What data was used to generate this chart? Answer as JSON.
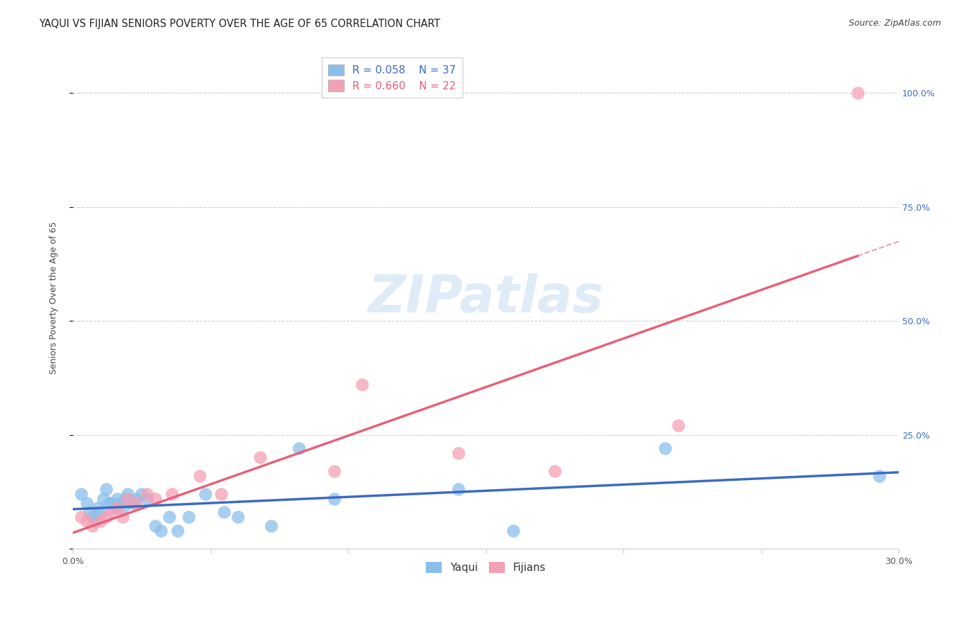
{
  "title": "YAQUI VS FIJIAN SENIORS POVERTY OVER THE AGE OF 65 CORRELATION CHART",
  "source": "Source: ZipAtlas.com",
  "ylabel": "Seniors Poverty Over the Age of 65",
  "xlim": [
    0.0,
    0.3
  ],
  "ylim": [
    0.0,
    1.1
  ],
  "xtick_positions": [
    0.0,
    0.05,
    0.1,
    0.15,
    0.2,
    0.25,
    0.3
  ],
  "xtick_labels": [
    "0.0%",
    "",
    "",
    "",
    "",
    "",
    "30.0%"
  ],
  "ytick_positions": [
    0.0,
    0.25,
    0.5,
    0.75,
    1.0
  ],
  "ytick_labels_right": [
    "",
    "25.0%",
    "50.0%",
    "75.0%",
    "100.0%"
  ],
  "watermark": "ZIPatlas",
  "legend_r1": "R = 0.058",
  "legend_n1": "N = 37",
  "legend_r2": "R = 0.660",
  "legend_n2": "N = 22",
  "yaqui_color": "#8bbfea",
  "fijian_color": "#f4a0b5",
  "yaqui_line_color": "#3a6bc4",
  "fijian_line_color": "#e8607a",
  "diagonal_color": "#e0a0b0",
  "grid_color": "#d0d0d0",
  "background_color": "#ffffff",
  "yaqui_x": [
    0.003,
    0.005,
    0.006,
    0.007,
    0.008,
    0.009,
    0.01,
    0.011,
    0.012,
    0.013,
    0.014,
    0.015,
    0.016,
    0.017,
    0.018,
    0.019,
    0.02,
    0.021,
    0.022,
    0.023,
    0.025,
    0.027,
    0.03,
    0.032,
    0.035,
    0.038,
    0.042,
    0.048,
    0.055,
    0.06,
    0.072,
    0.082,
    0.095,
    0.14,
    0.16,
    0.215,
    0.293
  ],
  "yaqui_y": [
    0.12,
    0.1,
    0.08,
    0.07,
    0.06,
    0.09,
    0.08,
    0.11,
    0.13,
    0.1,
    0.1,
    0.09,
    0.11,
    0.1,
    0.09,
    0.11,
    0.12,
    0.1,
    0.1,
    0.11,
    0.12,
    0.11,
    0.05,
    0.04,
    0.07,
    0.04,
    0.07,
    0.12,
    0.08,
    0.07,
    0.05,
    0.22,
    0.11,
    0.13,
    0.04,
    0.22,
    0.16
  ],
  "fijian_x": [
    0.003,
    0.005,
    0.007,
    0.01,
    0.012,
    0.014,
    0.016,
    0.018,
    0.02,
    0.023,
    0.027,
    0.03,
    0.036,
    0.046,
    0.054,
    0.068,
    0.095,
    0.105,
    0.14,
    0.175,
    0.22,
    0.285
  ],
  "fijian_y": [
    0.07,
    0.06,
    0.05,
    0.06,
    0.07,
    0.08,
    0.09,
    0.07,
    0.11,
    0.1,
    0.12,
    0.11,
    0.12,
    0.16,
    0.12,
    0.2,
    0.17,
    0.36,
    0.21,
    0.17,
    0.27,
    1.0
  ],
  "title_fontsize": 10.5,
  "axis_label_fontsize": 9,
  "tick_fontsize": 9,
  "source_fontsize": 9,
  "legend_fontsize": 11,
  "watermark_fontsize": 54
}
